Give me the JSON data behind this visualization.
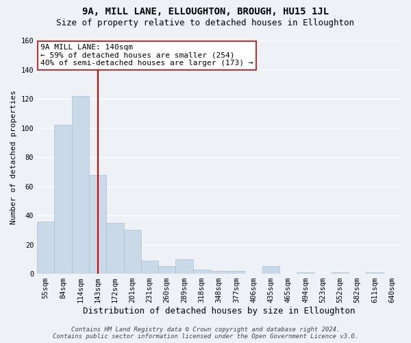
{
  "title": "9A, MILL LANE, ELLOUGHTON, BROUGH, HU15 1JL",
  "subtitle": "Size of property relative to detached houses in Elloughton",
  "xlabel": "Distribution of detached houses by size in Elloughton",
  "ylabel": "Number of detached properties",
  "bar_labels": [
    "55sqm",
    "84sqm",
    "114sqm",
    "143sqm",
    "172sqm",
    "201sqm",
    "231sqm",
    "260sqm",
    "289sqm",
    "318sqm",
    "348sqm",
    "377sqm",
    "406sqm",
    "435sqm",
    "465sqm",
    "494sqm",
    "523sqm",
    "552sqm",
    "582sqm",
    "611sqm",
    "640sqm"
  ],
  "bar_heights": [
    36,
    102,
    122,
    68,
    35,
    30,
    9,
    5,
    10,
    3,
    2,
    2,
    0,
    5,
    0,
    1,
    0,
    1,
    0,
    1,
    0
  ],
  "bar_color": "#c9d9e8",
  "bar_edge_color": "#aabfcf",
  "vline_x_index": 3,
  "vline_color": "#cc0000",
  "annotation_line1": "9A MILL LANE: 140sqm",
  "annotation_line2": "← 59% of detached houses are smaller (254)",
  "annotation_line3": "40% of semi-detached houses are larger (173) →",
  "annotation_box_color": "#ffffff",
  "annotation_box_edgecolor": "#cc0000",
  "annotation_fontsize": 8.0,
  "ylim": [
    0,
    160
  ],
  "yticks": [
    0,
    20,
    40,
    60,
    80,
    100,
    120,
    140,
    160
  ],
  "title_fontsize": 10,
  "subtitle_fontsize": 9,
  "xlabel_fontsize": 9,
  "ylabel_fontsize": 8,
  "footer_text": "Contains HM Land Registry data © Crown copyright and database right 2024.\nContains public sector information licensed under the Open Government Licence v3.0.",
  "background_color": "#eef2f7",
  "plot_background_color": "#eef2f7",
  "grid_color": "#ffffff",
  "tick_fontsize": 7.5,
  "monospace_font": "DejaVu Sans Mono"
}
